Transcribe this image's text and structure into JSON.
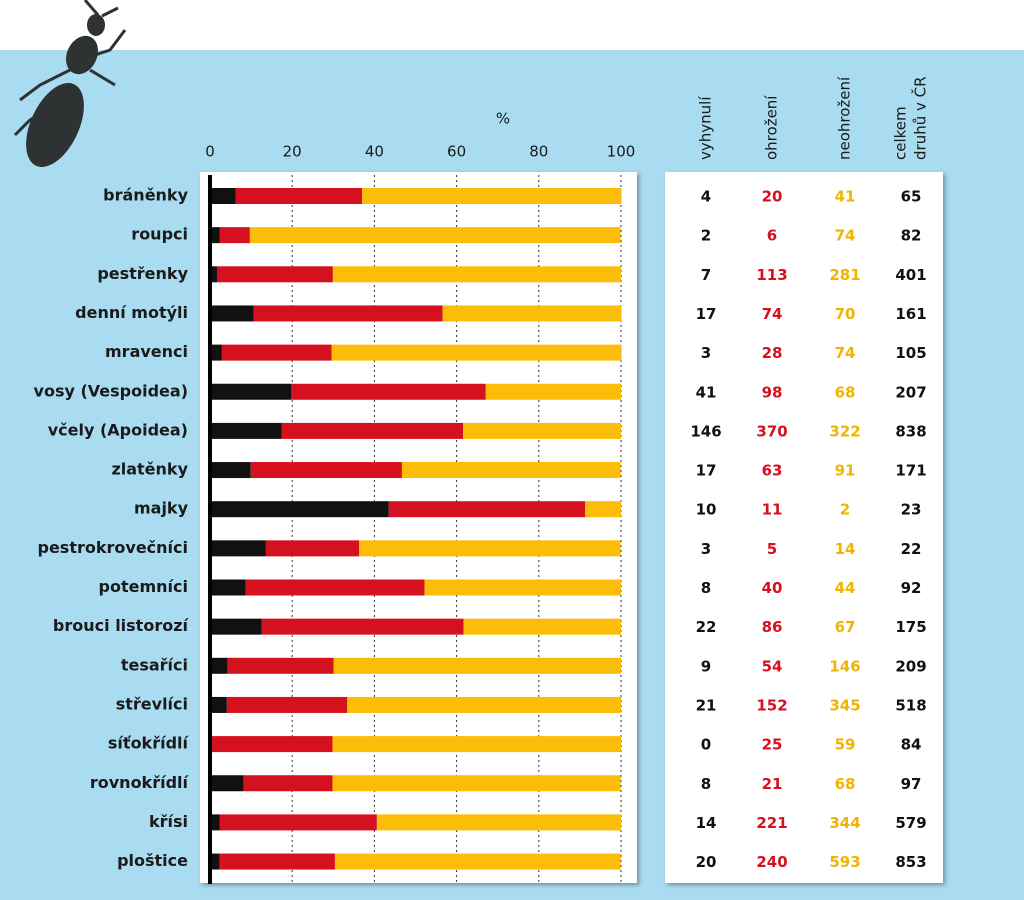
{
  "chart_data": {
    "type": "stacked-bar-horizontal",
    "xlabel": "%",
    "categories": [
      "bráněnky",
      "roupci",
      "pestřenky",
      "denní motýli",
      "mravenci",
      "vosy (Vespoidea)",
      "včely (Apoidea)",
      "zlatěnky",
      "majky",
      "pestrokrovečníci",
      "potemníci",
      "brouci listorozí",
      "tesaříci",
      "střevlíci",
      "síťokřídlí",
      "rovnokřídlí",
      "křísi",
      "ploštice"
    ],
    "series": [
      {
        "color": "#111111",
        "values": [
          6.2,
          2.4,
          1.7,
          10.6,
          2.9,
          19.8,
          17.4,
          9.9,
          43.5,
          13.6,
          8.7,
          12.6,
          4.3,
          4.1,
          0,
          8.2,
          2.4,
          2.3
        ]
      },
      {
        "color": "#d5101f",
        "values": [
          30.8,
          7.3,
          28.2,
          46.0,
          26.7,
          47.3,
          44.2,
          36.8,
          47.8,
          22.7,
          43.5,
          49.1,
          25.8,
          29.3,
          29.8,
          21.6,
          38.2,
          28.1
        ]
      },
      {
        "color": "#fbbd08",
        "values": [
          63.1,
          90.2,
          70.1,
          43.5,
          70.5,
          32.9,
          38.4,
          53.2,
          8.7,
          63.6,
          47.8,
          38.3,
          69.9,
          66.6,
          70.2,
          70.1,
          59.4,
          69.5
        ]
      }
    ],
    "xlim": [
      0,
      100
    ],
    "xticks": [
      0,
      20,
      40,
      60,
      80,
      100
    ],
    "grid": true
  },
  "table": {
    "columns": [
      "vyhynulí",
      "ohrožení",
      "neohrožení",
      [
        "celkem",
        "druhů v ČR"
      ]
    ],
    "colors": [
      "#111111",
      "#d5101f",
      "#f0b400",
      "#111111"
    ],
    "rows": [
      [
        4,
        20,
        41,
        65
      ],
      [
        2,
        6,
        74,
        82
      ],
      [
        7,
        113,
        281,
        401
      ],
      [
        17,
        74,
        70,
        161
      ],
      [
        3,
        28,
        74,
        105
      ],
      [
        41,
        98,
        68,
        207
      ],
      [
        146,
        370,
        322,
        838
      ],
      [
        17,
        63,
        91,
        171
      ],
      [
        10,
        11,
        2,
        23
      ],
      [
        3,
        5,
        14,
        22
      ],
      [
        8,
        40,
        44,
        92
      ],
      [
        22,
        86,
        67,
        175
      ],
      [
        9,
        54,
        146,
        209
      ],
      [
        21,
        152,
        345,
        518
      ],
      [
        0,
        25,
        59,
        84
      ],
      [
        8,
        21,
        68,
        97
      ],
      [
        14,
        221,
        344,
        579
      ],
      [
        20,
        240,
        593,
        853
      ]
    ]
  }
}
